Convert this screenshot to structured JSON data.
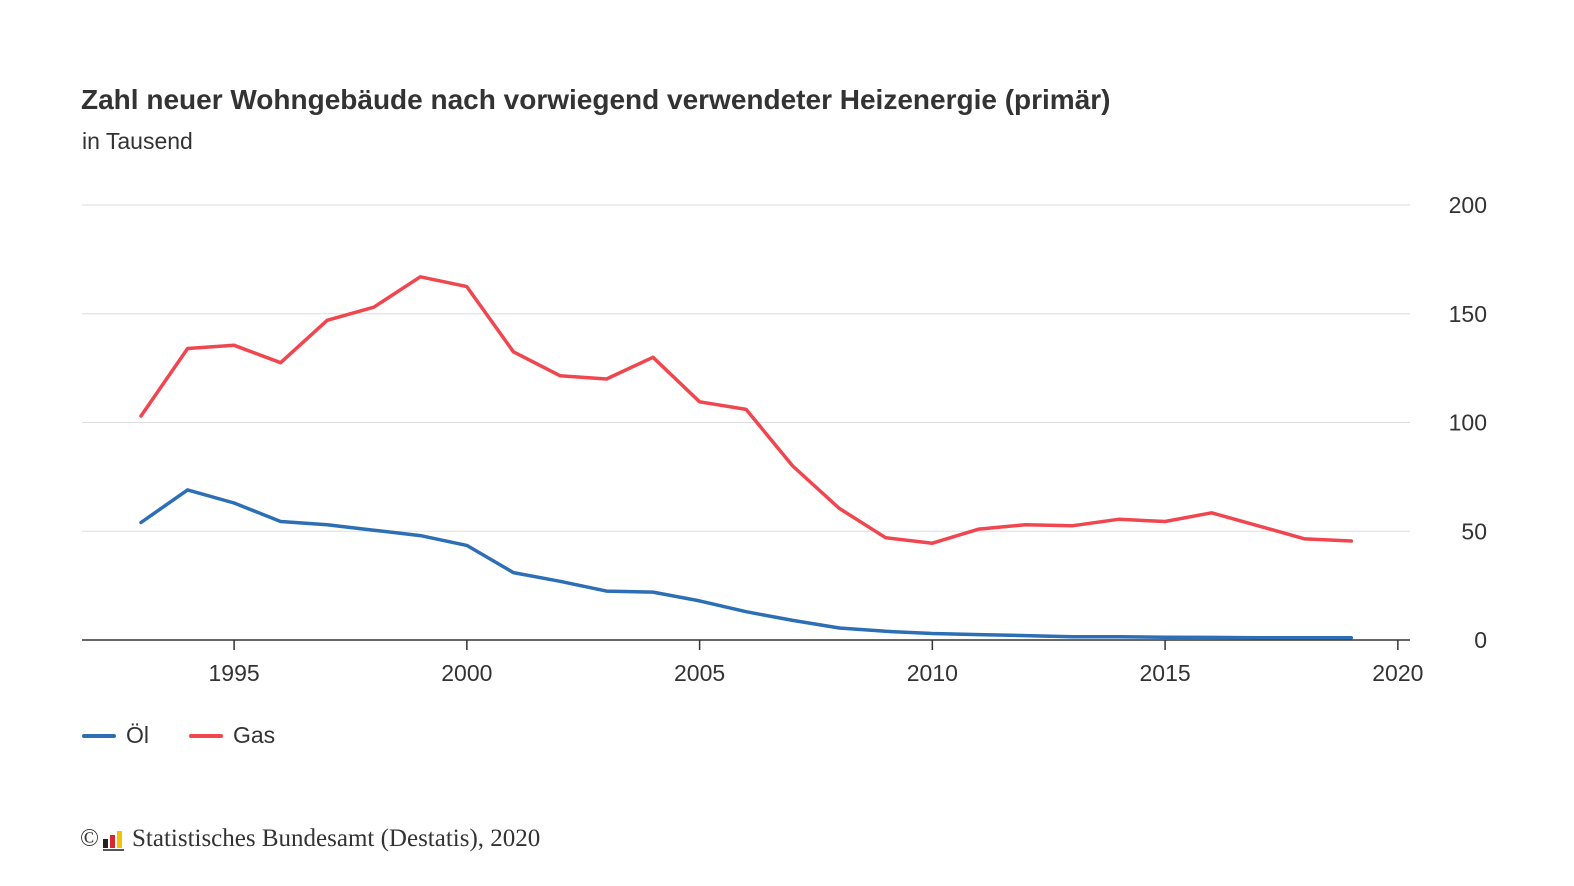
{
  "header": {
    "title": "Zahl neuer Wohngebäude nach vorwiegend verwendeter Heizenergie (primär)",
    "subtitle": "in Tausend"
  },
  "legend": {
    "items": [
      {
        "label": "Öl",
        "color": "#2d6fb4"
      },
      {
        "label": "Gas",
        "color": "#f04650"
      }
    ]
  },
  "footer": {
    "copyright_symbol": "©",
    "source": "Statistisches Bundesamt (Destatis), 2020",
    "logo_icon": "destatis-logo-icon"
  },
  "chart_data": {
    "type": "line",
    "title": "Zahl neuer Wohngebäude nach vorwiegend verwendeter Heizenergie (primär)",
    "subtitle": "in Tausend",
    "xlabel": "",
    "ylabel": "",
    "x": [
      1993,
      1994,
      1995,
      1996,
      1997,
      1998,
      1999,
      2000,
      2001,
      2002,
      2003,
      2004,
      2005,
      2006,
      2007,
      2008,
      2009,
      2010,
      2011,
      2012,
      2013,
      2014,
      2015,
      2016,
      2017,
      2018,
      2019
    ],
    "series": [
      {
        "name": "Öl",
        "color": "#2d6fb4",
        "values": [
          54,
          69,
          63,
          54.5,
          53,
          50.5,
          48,
          43.5,
          31,
          27,
          22.5,
          22,
          18,
          13,
          9,
          5.5,
          4,
          3,
          2.5,
          2,
          1.5,
          1.5,
          1.3,
          1.2,
          1,
          1,
          1
        ]
      },
      {
        "name": "Gas",
        "color": "#f04650",
        "values": [
          103,
          134,
          135.5,
          127.5,
          147,
          153,
          167,
          162.5,
          132.5,
          121.5,
          120,
          130,
          109.5,
          106,
          80,
          60.5,
          47,
          44.5,
          51,
          53,
          52.5,
          55.5,
          54.5,
          58.5,
          52.5,
          46.5,
          45.5
        ]
      }
    ],
    "xlim": [
      1990.5,
      2020.5
    ],
    "ylim": [
      0,
      200
    ],
    "x_ticks": [
      1995,
      2000,
      2005,
      2010,
      2015,
      2020
    ],
    "y_ticks": [
      0,
      50,
      100,
      150,
      200
    ],
    "y_axis_side": "right",
    "grid": "horizontal",
    "legend_position": "bottom-left"
  }
}
